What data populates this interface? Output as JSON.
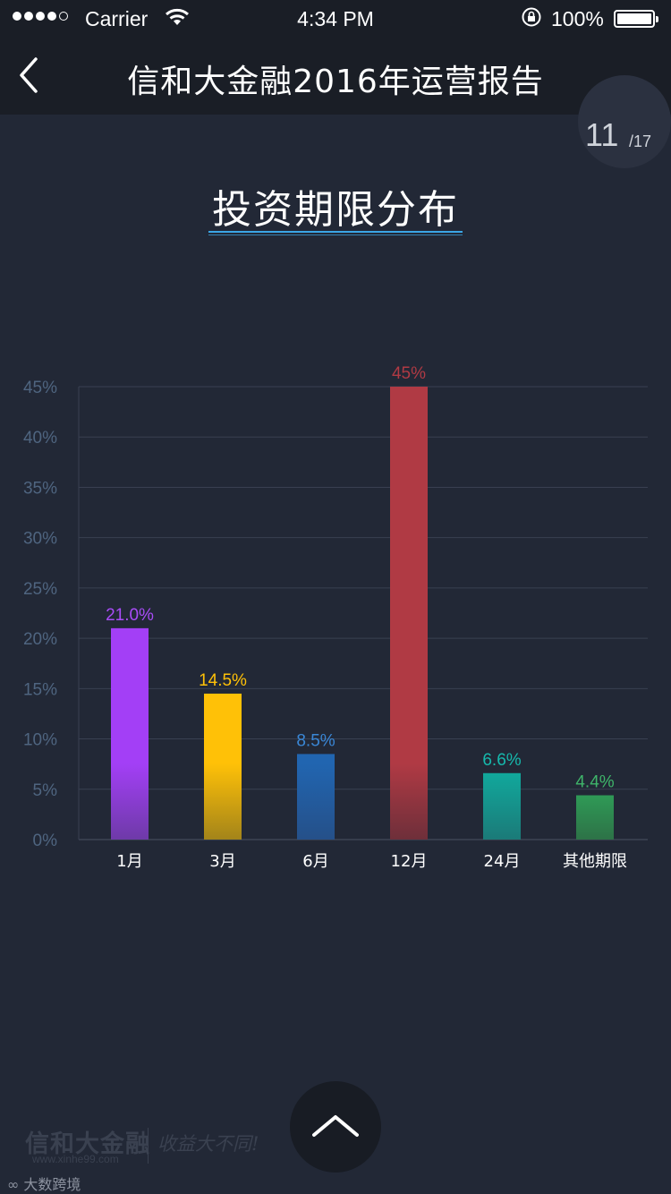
{
  "status_bar": {
    "carrier": "Carrier",
    "time": "4:34 PM",
    "battery": "100%"
  },
  "nav": {
    "title": "信和大金融2016年运营报告"
  },
  "pager": {
    "current": "11",
    "total": "/17"
  },
  "section_title": "投资期限分布",
  "chart_data": {
    "type": "bar",
    "categories": [
      "1月",
      "3月",
      "6月",
      "12月",
      "24月",
      "其他期限"
    ],
    "values": [
      21.0,
      14.5,
      8.5,
      45,
      6.6,
      4.4
    ],
    "data_labels": [
      "21.0%",
      "14.5%",
      "8.5%",
      "45%",
      "6.6%",
      "4.4%"
    ],
    "colors": [
      "#a33ff6",
      "#ffc107",
      "#2165b0",
      "#b03a44",
      "#11a89c",
      "#2f9a56"
    ],
    "bottom_colors": [
      "#6e3aa8",
      "#a3841a",
      "#255089",
      "#6e2f3a",
      "#1b7a78",
      "#2d7247"
    ],
    "label_colors": [
      "#a94cf8",
      "#ffc107",
      "#3a87d6",
      "#b03a44",
      "#16b9ad",
      "#3fb56a"
    ],
    "yticks": [
      "0%",
      "5%",
      "10%",
      "15%",
      "20%",
      "25%",
      "30%",
      "35%",
      "40%",
      "45%"
    ],
    "ylim": [
      0,
      45
    ],
    "grid": true,
    "title": "",
    "xlabel": "",
    "ylabel": ""
  },
  "watermark": {
    "logo": "信和大金融",
    "url": "www.xinhe99.com",
    "slogan": "收益大不同!",
    "source": "大数跨境"
  }
}
